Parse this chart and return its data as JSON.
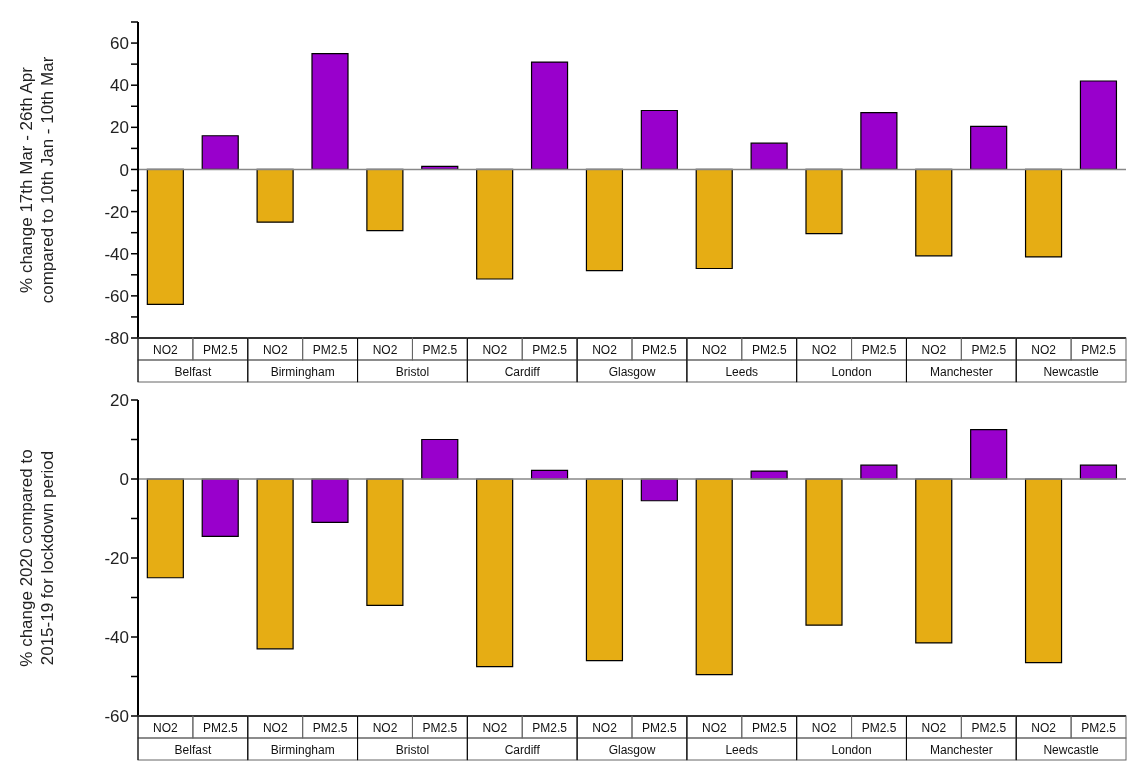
{
  "chart_data": [
    {
      "type": "bar",
      "ylabel": "% change 17th Mar - 26th Apr\ncompared to 10th Jan - 10th Mar",
      "categories": [
        "NO2",
        "PM2.5",
        "NO2",
        "PM2.5",
        "NO2",
        "PM2.5",
        "NO2",
        "PM2.5",
        "NO2",
        "PM2.5",
        "NO2",
        "PM2.5",
        "NO2",
        "PM2.5",
        "NO2",
        "PM2.5",
        "NO2",
        "PM2.5"
      ],
      "values": [
        -64,
        16,
        -25,
        55,
        -29,
        1.5,
        -52,
        51,
        -48,
        28,
        -47,
        12.5,
        -30.5,
        27,
        -41,
        20.5,
        -41.5,
        42
      ],
      "colors": [
        "#e6ad14",
        "#9900cc",
        "#e6ad14",
        "#9900cc",
        "#e6ad14",
        "#9900cc",
        "#e6ad14",
        "#9900cc",
        "#e6ad14",
        "#9900cc",
        "#e6ad14",
        "#9900cc",
        "#e6ad14",
        "#9900cc",
        "#e6ad14",
        "#9900cc",
        "#e6ad14",
        "#9900cc"
      ],
      "annotations": [
        "Belfast",
        "Birmingham",
        "Bristol",
        "Cardiff",
        "Glasgow",
        "Leeds",
        "London",
        "Manchester",
        "Newcastle"
      ],
      "ylim": [
        -80,
        70
      ],
      "yticks": [
        -80,
        {
          "value": -70,
          "label": null
        },
        -60,
        {
          "value": -50,
          "label": null
        },
        -40,
        {
          "value": -30,
          "label": null
        },
        -20,
        {
          "value": -10,
          "label": null
        },
        0,
        {
          "value": 10,
          "label": null
        },
        20,
        {
          "value": 30,
          "label": null
        },
        40,
        {
          "value": 50,
          "label": null
        },
        60,
        {
          "value": 70,
          "label": null
        }
      ],
      "ref_lines": [
        {
          "axis": "y",
          "value": 0,
          "color": "#888888"
        }
      ]
    },
    {
      "type": "bar",
      "ylabel": "% change 2020 compared to\n2015-19 for lockdown period",
      "categories": [
        "NO2",
        "PM2.5",
        "NO2",
        "PM2.5",
        "NO2",
        "PM2.5",
        "NO2",
        "PM2.5",
        "NO2",
        "PM2.5",
        "NO2",
        "PM2.5",
        "NO2",
        "PM2.5",
        "NO2",
        "PM2.5",
        "NO2",
        "PM2.5"
      ],
      "values": [
        -25,
        -14.5,
        -43,
        -11,
        -32,
        10,
        -47.5,
        2.2,
        -46,
        -5.5,
        -49.5,
        2,
        -37,
        3.5,
        -41.5,
        12.5,
        -46.5,
        3.5
      ],
      "colors": [
        "#e6ad14",
        "#9900cc",
        "#e6ad14",
        "#9900cc",
        "#e6ad14",
        "#9900cc",
        "#e6ad14",
        "#9900cc",
        "#e6ad14",
        "#9900cc",
        "#e6ad14",
        "#9900cc",
        "#e6ad14",
        "#9900cc",
        "#e6ad14",
        "#9900cc",
        "#e6ad14",
        "#9900cc"
      ],
      "annotations": [
        "Belfast",
        "Birmingham",
        "Bristol",
        "Cardiff",
        "Glasgow",
        "Leeds",
        "London",
        "Manchester",
        "Newcastle"
      ],
      "ylim": [
        -60,
        20
      ],
      "yticks": [
        -60,
        {
          "value": -50,
          "label": null
        },
        -40,
        {
          "value": -30,
          "label": null
        },
        -20,
        {
          "value": -10,
          "label": null
        },
        0,
        {
          "value": 10,
          "label": null
        },
        20
      ],
      "ref_lines": [
        {
          "axis": "y",
          "value": 0,
          "color": "#888888"
        }
      ]
    }
  ]
}
